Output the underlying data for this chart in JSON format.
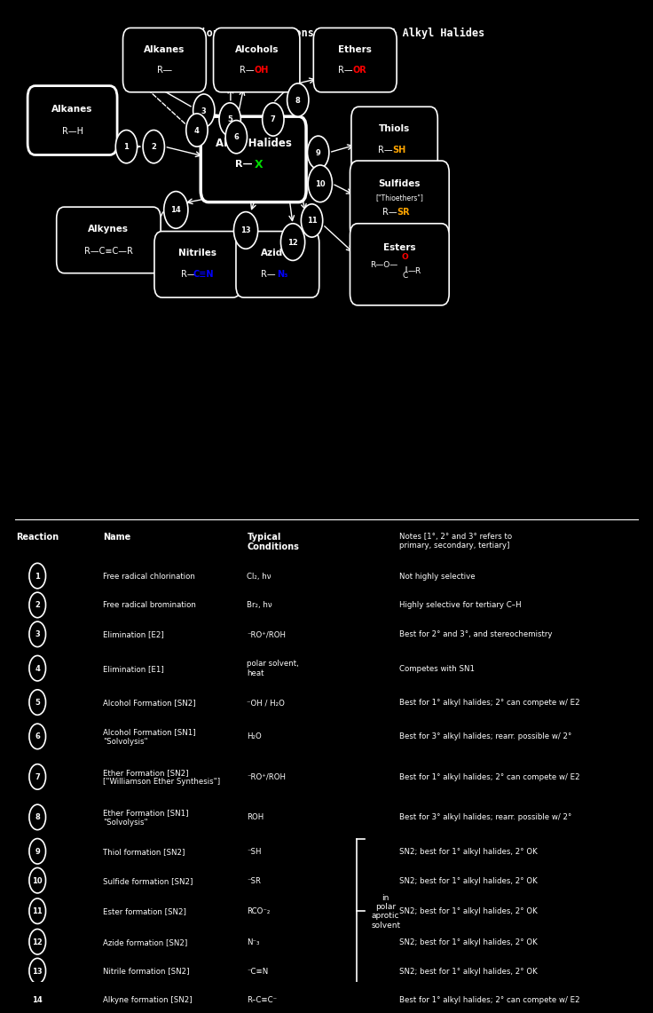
{
  "title": "Reaction Map: Reactions of Alkanes & Alkyl Halides",
  "bg_color": "#000000",
  "fg_color": "#ffffff",
  "table_header": [
    "Reaction",
    "Name",
    "Typical\nConditions",
    "Notes [1°, 2° and 3° refers to\nprimary, secondary, tertiary]"
  ],
  "table_rows": [
    {
      "n": "1",
      "name": "Free radical chlorination",
      "conditions": "Cl₂, hν",
      "notes": "Not highly selective"
    },
    {
      "n": "2",
      "name": "Free radical bromination",
      "conditions": "Br₂, hν",
      "notes": "Highly selective for tertiary C–H"
    },
    {
      "n": "3",
      "name": "Elimination [E2]",
      "conditions": "⁻RO⁺/ROH",
      "notes": "Best for 2° and 3°, and stereochemistry"
    },
    {
      "n": "4",
      "name": "Elimination [E1]",
      "conditions": "polar solvent,\nheat",
      "notes": "Competes with SN1"
    },
    {
      "n": "5",
      "name": "Alcohol Formation [SN2]",
      "conditions": "⁻OH / H₂O",
      "notes": "Best for 1° alkyl halides; 2° can compete w/ E2"
    },
    {
      "n": "6",
      "name": "Alcohol Formation [SN1]\n\"Solvolysis\"",
      "conditions": "H₂O",
      "notes": "Best for 3° alkyl halides; rearr. possible w/ 2°"
    },
    {
      "n": "7",
      "name": "Ether Formation [SN2]\n[\"Williamson Ether Synthesis\"]",
      "conditions": "⁻RO⁺/ROH",
      "notes": "Best for 1° alkyl halides; 2° can compete w/ E2"
    },
    {
      "n": "8",
      "name": "Ether Formation [SN1]\n\"Solvolysis\"",
      "conditions": "ROH",
      "notes": "Best for 3° alkyl halides; rearr. possible w/ 2°"
    },
    {
      "n": "9",
      "name": "Thiol formation [SN2]",
      "conditions": "⁻SH",
      "notes": "SN2; best for 1° alkyl halides, 2° OK"
    },
    {
      "n": "10",
      "name": "Sulfide formation [SN2]",
      "conditions": "⁻SR",
      "notes": "SN2; best for 1° alkyl halides, 2° OK"
    },
    {
      "n": "11",
      "name": "Ester formation [SN2]",
      "conditions": "RCO⁻₂",
      "notes": "SN2; best for 1° alkyl halides, 2° OK"
    },
    {
      "n": "12",
      "name": "Azide formation [SN2]",
      "conditions": "N⁻₃",
      "notes": "SN2; best for 1° alkyl halides, 2° OK"
    },
    {
      "n": "13",
      "name": "Nitrile formation [SN2]",
      "conditions": "⁻C≡N",
      "notes": "SN2; best for 1° alkyl halides, 2° OK"
    },
    {
      "n": "14",
      "name": "Alkyne formation [SN2]",
      "conditions": "R–C≡C⁻",
      "notes": "Best for 1° alkyl halides; 2° can compete w/ E2"
    }
  ]
}
